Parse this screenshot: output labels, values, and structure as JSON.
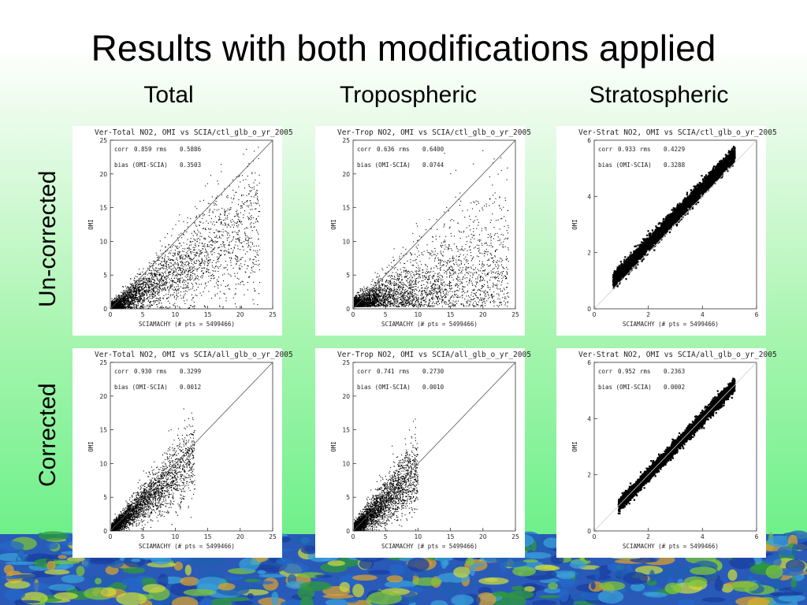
{
  "slide": {
    "title": "Results with both modifications applied",
    "columns": [
      "Total",
      "Tropospheric",
      "Stratospheric"
    ],
    "rows": [
      "Un-corrected",
      "Corrected"
    ]
  },
  "chart_data": [
    {
      "type": "scatter",
      "title": "Ver-Total NO2, OMI vs SCIA/ctl_glb_o_yr_2005",
      "xlabel": "SCIAMACHY (# pts =  5499466)",
      "ylabel": "OMI",
      "xlim": [
        0,
        25
      ],
      "ylim": [
        0,
        25
      ],
      "xticks": [
        0,
        5,
        10,
        15,
        20,
        25
      ],
      "yticks": [
        0,
        5,
        10,
        15,
        20,
        25
      ],
      "stats": {
        "corr": "0.859",
        "rms": "0.5886",
        "bias": "0.3503"
      },
      "stat_labels": {
        "corr": "corr",
        "rms": "rms",
        "bias": "bias (OMI-SCIA)"
      },
      "one_to_one_line": true,
      "cloud": {
        "slope": 0.55,
        "spread": 0.22,
        "xmax": 23,
        "scatter": "wide"
      }
    },
    {
      "type": "scatter",
      "title": "Ver-Trop NO2, OMI vs SCIA/ctl_glb_o_yr_2005",
      "xlabel": "SCIAMACHY (# pts =  5499466)",
      "ylabel": "OMI",
      "xlim": [
        0,
        25
      ],
      "ylim": [
        0,
        25
      ],
      "xticks": [
        0,
        5,
        10,
        15,
        20,
        25
      ],
      "yticks": [
        0,
        5,
        10,
        15,
        20,
        25
      ],
      "stats": {
        "corr": "0.636",
        "rms": "0.6400",
        "bias": "0.0744"
      },
      "stat_labels": {
        "corr": "corr",
        "rms": "rms",
        "bias": "bias (OMI-SCIA)"
      },
      "one_to_one_line": true,
      "cloud": {
        "slope": 0.25,
        "spread": 0.35,
        "xmax": 24,
        "scatter": "flat"
      }
    },
    {
      "type": "scatter",
      "title": "Ver-Strat NO2, OMI vs SCIA/ctl_glb_o_yr_2005",
      "xlabel": "SCIAMACHY (# pts =  5499466)",
      "ylabel": "OMI",
      "xlim": [
        0,
        6
      ],
      "ylim": [
        0,
        6
      ],
      "xticks": [
        0,
        2,
        4,
        6
      ],
      "yticks": [
        0,
        2,
        4,
        6
      ],
      "stats": {
        "corr": "0.933",
        "rms": "0.4229",
        "bias": "0.3288"
      },
      "stat_labels": {
        "corr": "corr",
        "rms": "rms",
        "bias": "bias (OMI-SCIA)"
      },
      "one_to_one_line": true,
      "cloud": {
        "slope": 1.0,
        "spread": 0.06,
        "xmin": 0.7,
        "xmax": 5.2,
        "offset": 0.3,
        "scatter": "dense"
      }
    },
    {
      "type": "scatter",
      "title": "Ver-Total NO2, OMI vs SCIA/all_glb_o_yr_2005",
      "xlabel": "SCIAMACHY (# pts =  5499466)",
      "ylabel": "OMI",
      "xlim": [
        0,
        25
      ],
      "ylim": [
        0,
        25
      ],
      "xticks": [
        0,
        5,
        10,
        15,
        20,
        25
      ],
      "yticks": [
        0,
        5,
        10,
        15,
        20,
        25
      ],
      "stats": {
        "corr": "0.930",
        "rms": "0.3299",
        "bias": "0.0012"
      },
      "stat_labels": {
        "corr": "corr",
        "rms": "rms",
        "bias": "bias (OMI-SCIA)"
      },
      "one_to_one_line": true,
      "cloud": {
        "slope": 0.85,
        "spread": 0.2,
        "xmax": 13,
        "scatter": "tight"
      }
    },
    {
      "type": "scatter",
      "title": "Ver-Trop NO2, OMI vs SCIA/all_glb_o_yr_2005",
      "xlabel": "SCIAMACHY (# pts =  5499466)",
      "ylabel": "OMI",
      "xlim": [
        0,
        25
      ],
      "ylim": [
        0,
        25
      ],
      "xticks": [
        0,
        5,
        10,
        15,
        20,
        25
      ],
      "yticks": [
        0,
        5,
        10,
        15,
        20,
        25
      ],
      "stats": {
        "corr": "0.741",
        "rms": "0.2730",
        "bias": "0.0010"
      },
      "stat_labels": {
        "corr": "corr",
        "rms": "rms",
        "bias": "bias (OMI-SCIA)"
      },
      "one_to_one_line": true,
      "cloud": {
        "slope": 0.9,
        "spread": 0.25,
        "xmax": 10,
        "scatter": "tight"
      }
    },
    {
      "type": "scatter",
      "title": "Ver-Strat NO2, OMI vs SCIA/all_glb_o_yr_2005",
      "xlabel": "SCIAMACHY (# pts =  5499466)",
      "ylabel": "OMI",
      "xlim": [
        0,
        6
      ],
      "ylim": [
        0,
        6
      ],
      "xticks": [
        0,
        2,
        4,
        6
      ],
      "yticks": [
        0,
        2,
        4,
        6
      ],
      "stats": {
        "corr": "0.952",
        "rms": "0.2363",
        "bias": "0.0002"
      },
      "stat_labels": {
        "corr": "corr",
        "rms": "rms",
        "bias": "bias (OMI-SCIA)"
      },
      "one_to_one_line": true,
      "cloud": {
        "slope": 1.0,
        "spread": 0.05,
        "xmin": 0.9,
        "xmax": 5.2,
        "offset": 0.0,
        "scatter": "dense"
      }
    }
  ]
}
